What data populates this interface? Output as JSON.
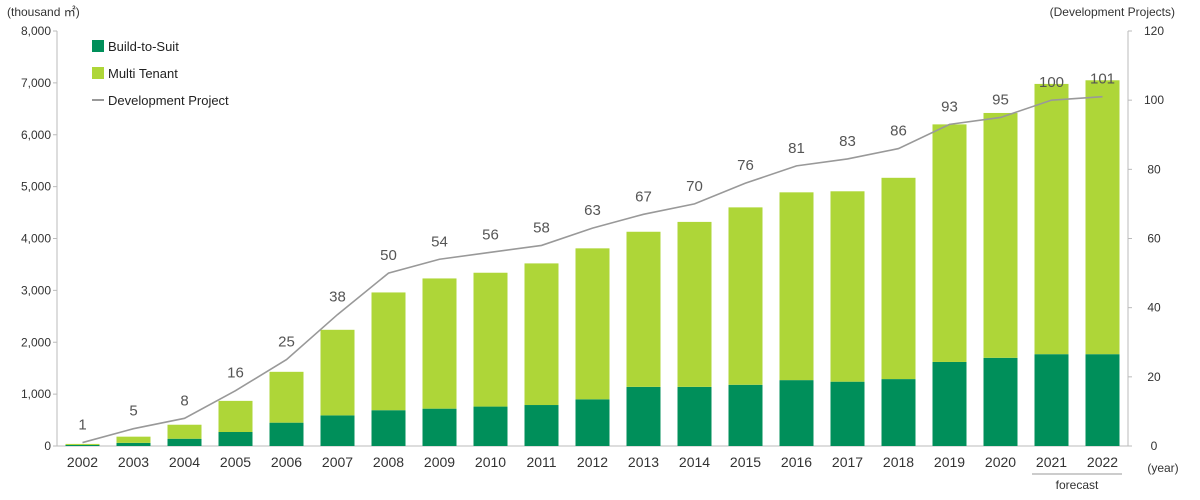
{
  "chart_data": {
    "type": "bar",
    "stacked": true,
    "categories": [
      "2002",
      "2003",
      "2004",
      "2005",
      "2006",
      "2007",
      "2008",
      "2009",
      "2010",
      "2011",
      "2012",
      "2013",
      "2014",
      "2015",
      "2016",
      "2017",
      "2018",
      "2019",
      "2020",
      "2021",
      "2022"
    ],
    "series": [
      {
        "name": "Build-to-Suit",
        "color": "#008f5a",
        "values": [
          20,
          60,
          140,
          270,
          450,
          590,
          690,
          720,
          760,
          790,
          900,
          1140,
          1140,
          1180,
          1270,
          1240,
          1290,
          1620,
          1700,
          1770,
          1770
        ]
      },
      {
        "name": "Multi Tenant",
        "color": "#aed638",
        "values": [
          20,
          120,
          270,
          600,
          980,
          1650,
          2270,
          2510,
          2580,
          2730,
          2910,
          2990,
          3180,
          3420,
          3620,
          3670,
          3880,
          4580,
          4720,
          5210,
          5280
        ]
      }
    ],
    "line_series": {
      "name": "Development Project",
      "color": "#999999",
      "axis": "right",
      "values": [
        1,
        5,
        8,
        16,
        25,
        38,
        50,
        54,
        56,
        58,
        63,
        67,
        70,
        76,
        81,
        83,
        86,
        93,
        95,
        100,
        101
      ]
    },
    "y_left": {
      "unit_label": "(thousand ㎡)",
      "ylim": [
        0,
        8000
      ],
      "ticks": [
        "0",
        "1,000",
        "2,000",
        "3,000",
        "4,000",
        "5,000",
        "6,000",
        "7,000",
        "8,000"
      ]
    },
    "y_right": {
      "unit_label": "(Development Projects)",
      "ylim": [
        0,
        120
      ],
      "ticks": [
        "0",
        "20",
        "40",
        "60",
        "80",
        "100",
        "120"
      ]
    },
    "x_unit_label": "(year)",
    "forecast_label": "forecast",
    "forecast_categories": [
      "2021",
      "2022"
    ],
    "legend_position": "top-left",
    "grid": false
  }
}
